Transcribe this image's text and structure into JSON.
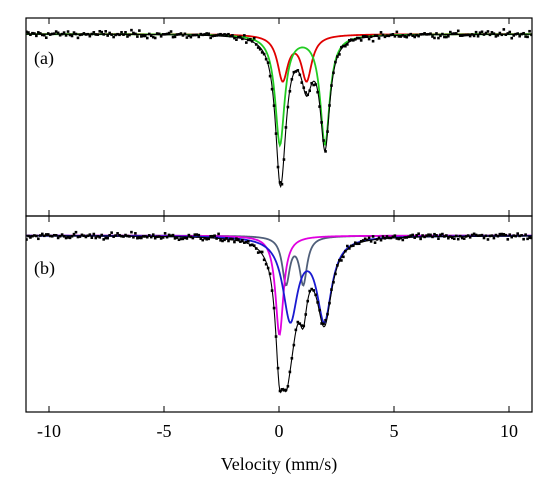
{
  "chart_data": {
    "type": "line",
    "xlabel": "Velocity (mm/s)",
    "xlim": [
      -11,
      11
    ],
    "x_ticks": [
      -10,
      -5,
      0,
      5,
      10
    ],
    "x_tick_labels": [
      "-10",
      "-5",
      "0",
      "5",
      "10"
    ],
    "y_ticks_labeled": false,
    "grid": false,
    "panels": [
      {
        "label": "(a)",
        "ylim": [
          0.66,
          1.03
        ],
        "baseline": 1.0,
        "data_min": 0.715,
        "components": [
          {
            "shape": "lorentzian_doublet",
            "center": 0.68,
            "splitting": 1.04,
            "depth": 0.09,
            "fwhm": 0.55,
            "color": "#e00000"
          },
          {
            "shape": "lorentzian_doublet",
            "center": 1.02,
            "splitting": 1.96,
            "depth": 0.22,
            "fwhm": 0.5,
            "color": "#22cc22"
          }
        ],
        "envelope_color": "#000000",
        "point_color": "#000000"
      },
      {
        "label": "(b)",
        "ylim": [
          0.82,
          1.02
        ],
        "baseline": 1.0,
        "data_min": 0.84,
        "components": [
          {
            "shape": "lorentzian_doublet",
            "center": 0.68,
            "splitting": 0.75,
            "depth": 0.04,
            "fwhm": 0.4,
            "color": "#505f7a"
          },
          {
            "shape": "lorentzian_singlet",
            "center": 0.02,
            "depth": 0.085,
            "fwhm": 0.42,
            "color": "#e000e0"
          },
          {
            "shape": "lorentzian_doublet",
            "center": 1.23,
            "splitting": 1.48,
            "depth": 0.07,
            "fwhm": 0.78,
            "color": "#1a1ad0"
          }
        ],
        "envelope_color": "#000000",
        "point_color": "#000000"
      }
    ]
  }
}
